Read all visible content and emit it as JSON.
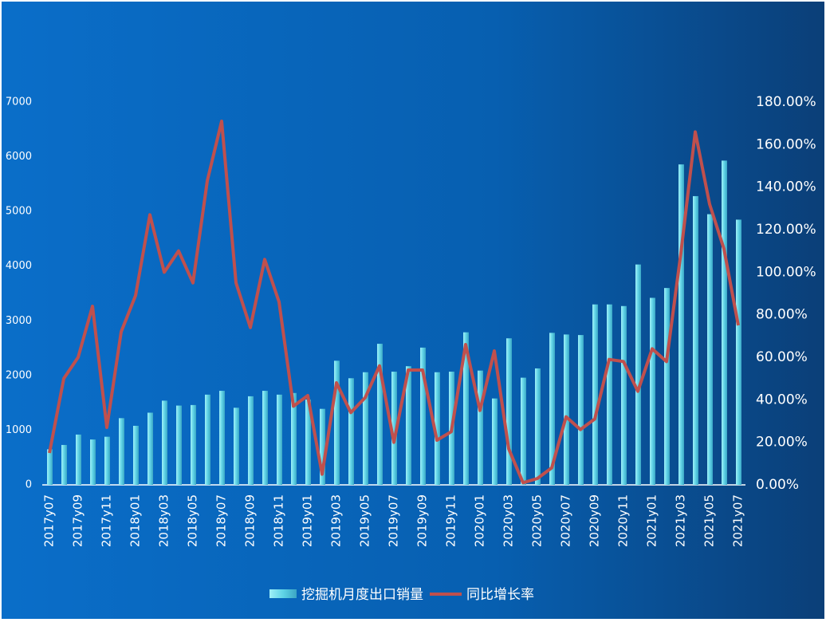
{
  "chart_data": {
    "type": "bar_line",
    "categories": [
      "2017y07",
      null,
      "2017y09",
      null,
      "2017y11",
      null,
      "2018y01",
      null,
      "2018y03",
      null,
      "2018y05",
      null,
      "2018y07",
      null,
      "2018y09",
      null,
      "2018y11",
      null,
      "2019y01",
      null,
      "2019y03",
      null,
      "2019y05",
      null,
      "2019y07",
      null,
      "2019y09",
      null,
      "2019y11",
      null,
      "2020y01",
      null,
      "2020y03",
      null,
      "2020y05",
      null,
      "2020y07",
      null,
      "2020y09",
      null,
      "2020y11",
      null,
      "2021y01",
      null,
      "2021y03",
      null,
      "2021y05",
      null,
      "2021y07"
    ],
    "series": [
      {
        "name": "挖掘机月度出口销量",
        "type": "bar",
        "color": "#5fd3e6",
        "values": [
          650,
          730,
          920,
          830,
          880,
          1220,
          1080,
          1320,
          1540,
          1450,
          1460,
          1650,
          1720,
          1410,
          1620,
          1720,
          1650,
          1680,
          1560,
          1390,
          2270,
          1950,
          2060,
          2580,
          2070,
          2170,
          2510,
          2060,
          2070,
          2790,
          2090,
          1580,
          2680,
          1960,
          2130,
          2780,
          2750,
          2740,
          3300,
          3300,
          3270,
          4030,
          3420,
          3600,
          5860,
          5280,
          4950,
          5930,
          4850
        ]
      },
      {
        "name": "同比增长率",
        "type": "line",
        "axis": "y2",
        "color": "#c0504d",
        "values": [
          15,
          50,
          60,
          84,
          27,
          72,
          89,
          127,
          100,
          110,
          95,
          143,
          171,
          95,
          74,
          106,
          86,
          37,
          42,
          5,
          48,
          34,
          41,
          56,
          20,
          54,
          54,
          21,
          25,
          66,
          35,
          63,
          17,
          1,
          3,
          8,
          32,
          26,
          31,
          59,
          58,
          44,
          64,
          58,
          109,
          166,
          132,
          111,
          75
        ]
      }
    ],
    "ylim": [
      0,
      7000
    ],
    "yticks": [
      0,
      1000,
      2000,
      3000,
      4000,
      5000,
      6000,
      7000
    ],
    "y2lim": [
      0,
      180
    ],
    "y2ticks": [
      {
        "value": 0,
        "label": "0.00%"
      },
      {
        "value": 20,
        "label": "20.00%"
      },
      {
        "value": 40,
        "label": "40.00%"
      },
      {
        "value": 60,
        "label": "60.00%"
      },
      {
        "value": 80,
        "label": "80.00%"
      },
      {
        "value": 100,
        "label": "100.00%"
      },
      {
        "value": 120,
        "label": "120.00%"
      },
      {
        "value": 140,
        "label": "140.00%"
      },
      {
        "value": 160,
        "label": "160.00%"
      },
      {
        "value": 180,
        "label": "180.00%"
      }
    ],
    "legend": "bottom"
  }
}
